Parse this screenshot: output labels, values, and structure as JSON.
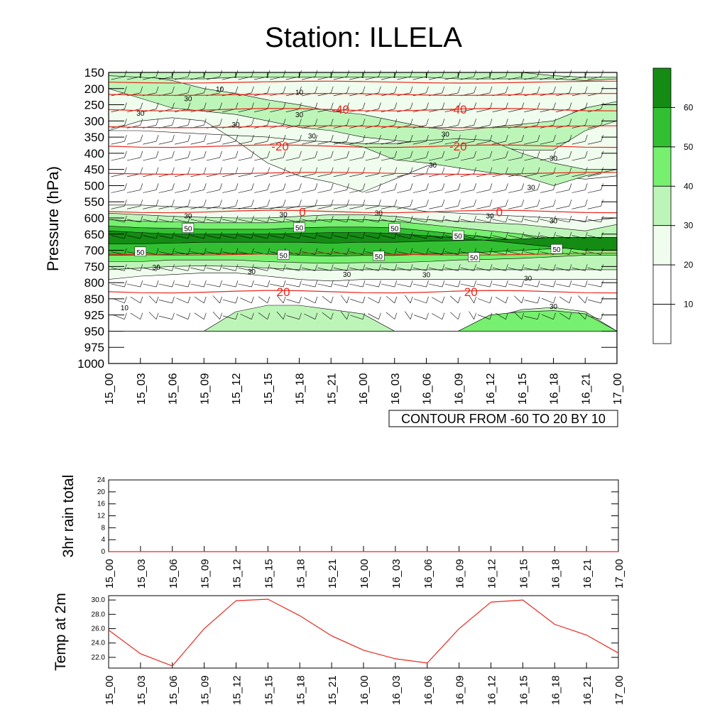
{
  "title": "Station: ILLELA",
  "time_labels": [
    "15_00",
    "15_03",
    "15_06",
    "15_09",
    "15_12",
    "15_15",
    "15_18",
    "15_21",
    "16_00",
    "16_03",
    "16_06",
    "16_09",
    "16_12",
    "16_15",
    "16_18",
    "16_21",
    "17_00"
  ],
  "colors": {
    "fill_levels": [
      "#ffffff",
      "#f0fced",
      "#bdf5b8",
      "#76f06e",
      "#32c032",
      "#148c14"
    ],
    "isotherm": "#e8281e",
    "temp_line": "#e8281e",
    "frame": "#000000"
  },
  "chart_data": [
    {
      "type": "heatmap",
      "name": "cross-section",
      "ylabel": "Pressure (hPa)",
      "xlabel": "",
      "y_ticks": [
        150,
        200,
        250,
        300,
        350,
        400,
        450,
        500,
        550,
        600,
        650,
        700,
        750,
        800,
        850,
        925,
        950,
        975,
        1000
      ],
      "shading_note": "CONTOUR FROM -60 TO 20 BY 10",
      "colorbar": {
        "labels": [
          "10",
          "20",
          "30",
          "40",
          "50",
          "60"
        ],
        "levels": [
          10,
          20,
          30,
          40,
          50,
          60
        ]
      },
      "isotherms": [
        {
          "label": "-40",
          "pressure": 265
        },
        {
          "label": "-20",
          "pressure": 378
        },
        {
          "label": "0",
          "pressure": 580
        },
        {
          "label": "20",
          "pressure": 828
        }
      ],
      "isotherm_labels": [
        {
          "text": "-40",
          "x": 7.3,
          "p": 268
        },
        {
          "text": "-40",
          "x": 11.0,
          "p": 268
        },
        {
          "text": "-20",
          "x": 5.4,
          "p": 383
        },
        {
          "text": "-20",
          "x": 11.0,
          "p": 383
        },
        {
          "text": "0",
          "x": 6.1,
          "p": 586
        },
        {
          "text": "0",
          "x": 12.3,
          "p": 586
        },
        {
          "text": "20",
          "x": 5.5,
          "p": 833
        },
        {
          "text": "20",
          "x": 11.4,
          "p": 833
        }
      ],
      "contour_labels": [
        {
          "text": "10",
          "x": 0.5,
          "p": 890
        },
        {
          "text": "10",
          "x": 6.0,
          "p": 210
        },
        {
          "text": "10",
          "x": 3.5,
          "p": 200
        },
        {
          "text": "30",
          "x": 2.5,
          "p": 230
        },
        {
          "text": "30",
          "x": 1.0,
          "p": 275
        },
        {
          "text": "30",
          "x": 6.0,
          "p": 280
        },
        {
          "text": "30",
          "x": 4.0,
          "p": 310
        },
        {
          "text": "30",
          "x": 6.4,
          "p": 345
        },
        {
          "text": "30",
          "x": 10.6,
          "p": 340
        },
        {
          "text": "30",
          "x": 10.2,
          "p": 435
        },
        {
          "text": "30",
          "x": 14.0,
          "p": 415
        },
        {
          "text": "30",
          "x": 13.3,
          "p": 505
        },
        {
          "text": "30",
          "x": 2.5,
          "p": 592
        },
        {
          "text": "30",
          "x": 5.5,
          "p": 588
        },
        {
          "text": "30",
          "x": 8.5,
          "p": 584
        },
        {
          "text": "30",
          "x": 12.0,
          "p": 592
        },
        {
          "text": "30",
          "x": 14.0,
          "p": 608
        },
        {
          "text": "30",
          "x": 1.5,
          "p": 752
        },
        {
          "text": "30",
          "x": 4.5,
          "p": 765
        },
        {
          "text": "30",
          "x": 7.5,
          "p": 773
        },
        {
          "text": "30",
          "x": 10.0,
          "p": 775
        },
        {
          "text": "30",
          "x": 13.2,
          "p": 785
        },
        {
          "text": "30",
          "x": 14.0,
          "p": 883
        },
        {
          "text": "50",
          "x": 2.5,
          "p": 632
        },
        {
          "text": "50",
          "x": 6.0,
          "p": 630
        },
        {
          "text": "50",
          "x": 9.0,
          "p": 632
        },
        {
          "text": "50",
          "x": 11.0,
          "p": 655
        },
        {
          "text": "50",
          "x": 1.0,
          "p": 705
        },
        {
          "text": "50",
          "x": 5.5,
          "p": 715
        },
        {
          "text": "50",
          "x": 8.5,
          "p": 718
        },
        {
          "text": "50",
          "x": 11.5,
          "p": 722
        },
        {
          "text": "50",
          "x": 14.1,
          "p": 697
        }
      ],
      "pressure_range": [
        150,
        1000
      ]
    },
    {
      "type": "line",
      "name": "rain",
      "ylabel": "3hr rain total",
      "yticks": [
        0,
        4,
        8,
        12,
        16,
        20,
        24
      ],
      "ylim": [
        0,
        24
      ],
      "values": [
        0,
        0,
        0,
        0,
        0,
        0,
        0,
        0,
        0,
        0,
        0,
        0,
        0,
        0,
        0,
        0,
        0
      ]
    },
    {
      "type": "line",
      "name": "temp",
      "ylabel": "Temp at 2m",
      "yticks": [
        "22.0",
        "24.0",
        "26.0",
        "28.0",
        "30.0"
      ],
      "ylim": [
        20.5,
        30.6
      ],
      "values": [
        25.8,
        22.5,
        20.8,
        26.0,
        29.9,
        30.1,
        27.8,
        25.0,
        23.0,
        21.8,
        21.2,
        26.0,
        29.7,
        30.0,
        26.6,
        25.1,
        22.6
      ]
    }
  ]
}
